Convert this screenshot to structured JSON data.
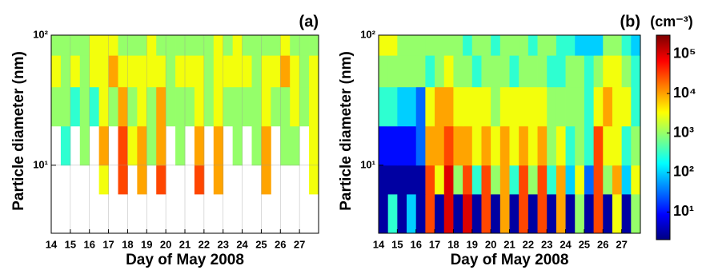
{
  "chart_data": [
    {
      "type": "heatmap",
      "title": "(a)",
      "xlabel": "Day of May 2008",
      "ylabel": "Particle diameter (nm)",
      "colormap": "jet",
      "log_color": true,
      "clim": [
        2,
        300000
      ],
      "grid": true,
      "log_y": true,
      "xlim": [
        14,
        28
      ],
      "ylim": [
        3,
        100
      ],
      "xticks": [
        14,
        15,
        16,
        17,
        18,
        19,
        20,
        21,
        22,
        23,
        24,
        25,
        26,
        27
      ],
      "yticks": [
        {
          "value": 10,
          "label": "10¹"
        },
        {
          "value": 100,
          "label": "10²"
        }
      ],
      "x_bins": [
        14,
        14.5,
        15,
        15.5,
        16,
        16.5,
        17,
        17.5,
        18,
        18.5,
        19,
        19.5,
        20,
        20.5,
        21,
        21.5,
        22,
        22.5,
        23,
        23.5,
        24,
        24.5,
        25,
        25.5,
        26,
        26.5,
        27,
        27.5,
        28
      ],
      "y_bins": [
        3,
        6,
        10,
        20,
        40,
        70,
        100
      ],
      "values": [
        [
          null,
          null,
          null,
          null,
          null,
          null,
          null,
          null,
          null,
          null,
          null,
          null,
          null,
          null,
          null,
          null,
          null,
          null,
          null,
          null,
          null,
          null,
          null,
          null,
          null,
          null,
          null,
          null
        ],
        [
          null,
          null,
          null,
          null,
          null,
          3000,
          null,
          30000,
          null,
          10000,
          null,
          30000,
          null,
          null,
          null,
          30000,
          null,
          10000,
          null,
          null,
          null,
          null,
          10000,
          null,
          null,
          null,
          null,
          3000
        ],
        [
          null,
          300,
          null,
          1000,
          null,
          10000,
          null,
          30000,
          3000,
          10000,
          1000,
          10000,
          null,
          1000,
          null,
          10000,
          null,
          10000,
          null,
          1000,
          null,
          1000,
          10000,
          null,
          1000,
          1000,
          null,
          3000
        ],
        [
          1000,
          1000,
          300,
          1000,
          300,
          3000,
          1000,
          10000,
          1000,
          3000,
          1000,
          10000,
          1000,
          1000,
          1000,
          3000,
          1000,
          3000,
          1000,
          1000,
          1000,
          1000,
          3000,
          1000,
          1000,
          3000,
          1000,
          3000
        ],
        [
          3000,
          1000,
          3000,
          1000,
          3000,
          3000,
          10000,
          3000,
          3000,
          3000,
          3000,
          3000,
          1000,
          3000,
          3000,
          3000,
          1000,
          3000,
          3000,
          3000,
          3000,
          1000,
          3000,
          3000,
          10000,
          3000,
          1000,
          3000
        ],
        [
          1000,
          1000,
          1000,
          1000,
          3000,
          3000,
          3000,
          1000,
          1000,
          1000,
          3000,
          1000,
          1000,
          1000,
          1000,
          1000,
          1000,
          3000,
          1000,
          3000,
          1000,
          1000,
          1000,
          1000,
          3000,
          1000,
          1000,
          1000
        ]
      ]
    },
    {
      "type": "heatmap",
      "title": "(b)",
      "xlabel": "Day of May 2008",
      "ylabel": "Particle diameter (nm)",
      "colormap": "jet",
      "log_color": true,
      "clim": [
        2,
        300000
      ],
      "grid": false,
      "log_y": true,
      "xlim": [
        14,
        28
      ],
      "ylim": [
        3,
        100
      ],
      "xticks": [
        14,
        15,
        16,
        17,
        18,
        19,
        20,
        21,
        22,
        23,
        24,
        25,
        26,
        27
      ],
      "yticks": [
        {
          "value": 10,
          "label": "10¹"
        },
        {
          "value": 100,
          "label": "10²"
        }
      ],
      "x_bins": [
        14,
        14.5,
        15,
        15.5,
        16,
        16.5,
        17,
        17.5,
        18,
        18.5,
        19,
        19.5,
        20,
        20.5,
        21,
        21.5,
        22,
        22.5,
        23,
        23.5,
        24,
        24.5,
        25,
        25.5,
        26,
        26.5,
        27,
        27.5,
        28
      ],
      "y_bins": [
        3,
        6,
        10,
        20,
        40,
        70,
        100
      ],
      "values": [
        [
          3,
          300,
          3,
          100,
          3,
          30000,
          3,
          100000,
          3,
          100000,
          3,
          30000,
          3,
          10000,
          3,
          30000,
          3,
          30000,
          3,
          10000,
          3,
          1000,
          3,
          30000,
          3,
          3000,
          3,
          1000
        ],
        [
          3,
          3,
          3,
          3,
          3,
          30000,
          3000,
          100000,
          1000,
          30000,
          300,
          30000,
          1000,
          10000,
          300,
          30000,
          1000,
          30000,
          300,
          10000,
          100,
          3000,
          30,
          30000,
          1000,
          10000,
          100,
          3000
        ],
        [
          10,
          10,
          10,
          10,
          30,
          10000,
          10000,
          30000,
          10000,
          10000,
          3000,
          10000,
          3000,
          10000,
          3000,
          10000,
          3000,
          10000,
          1000,
          3000,
          300,
          1000,
          300,
          30000,
          3000,
          3000,
          300,
          1000
        ],
        [
          300,
          300,
          100,
          100,
          30,
          3000,
          10000,
          10000,
          3000,
          3000,
          3000,
          3000,
          1000,
          3000,
          3000,
          3000,
          3000,
          3000,
          1000,
          1000,
          1000,
          1000,
          300,
          3000,
          10000,
          3000,
          3000,
          300
        ],
        [
          1000,
          1000,
          1000,
          1000,
          1000,
          300,
          1000,
          3000,
          1000,
          1000,
          300,
          1000,
          1000,
          1000,
          300,
          1000,
          1000,
          1000,
          300,
          300,
          1000,
          1000,
          300,
          1000,
          3000,
          3000,
          1000,
          300
        ],
        [
          3000,
          3000,
          1000,
          1000,
          1000,
          1000,
          1000,
          1000,
          1000,
          300,
          1000,
          1000,
          300,
          1000,
          1000,
          1000,
          300,
          1000,
          1000,
          300,
          300,
          100,
          100,
          100,
          1000,
          1000,
          300,
          100
        ]
      ],
      "colorbar": {
        "label": "(cm⁻³)",
        "lim": [
          2,
          300000
        ],
        "ticks": [
          {
            "value": 10,
            "label": "10¹"
          },
          {
            "value": 100,
            "label": "10²"
          },
          {
            "value": 1000,
            "label": "10³"
          },
          {
            "value": 10000,
            "label": "10⁴"
          },
          {
            "value": 100000,
            "label": "10⁵"
          }
        ]
      }
    }
  ]
}
